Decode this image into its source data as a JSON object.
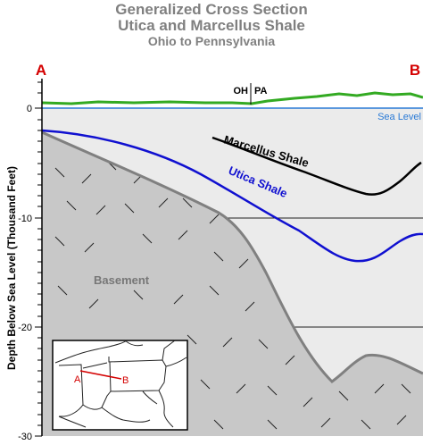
{
  "title": "Generalized Cross Section",
  "subtitle": "Utica and Marcellus Shale",
  "subtitle2": "Ohio to Pennsylvania",
  "endpoints": {
    "left": "A",
    "right": "B"
  },
  "border_label": {
    "left": "OH",
    "right": "PA"
  },
  "sea_level_label": "Sea Level",
  "y_axis": {
    "label": "Depth Below Sea Level (Thousand Feet)",
    "ticks": [
      "0",
      "-10",
      "-20",
      "-30"
    ]
  },
  "layers": {
    "marcellus": "Marcellus Shale",
    "utica": "Utica Shale",
    "basement": "Basement"
  },
  "inset_map": {
    "point_a": "A",
    "point_b": "B"
  },
  "colors": {
    "title": "#808080",
    "endpoint": "#d40000",
    "surface": "#33aa22",
    "sea_level": "#2a7ad6",
    "utica": "#1010d0",
    "marcellus": "#000000",
    "basement_fill": "#c8c8c8",
    "basement_edge": "#808080",
    "background_fill": "#ebebeb"
  }
}
